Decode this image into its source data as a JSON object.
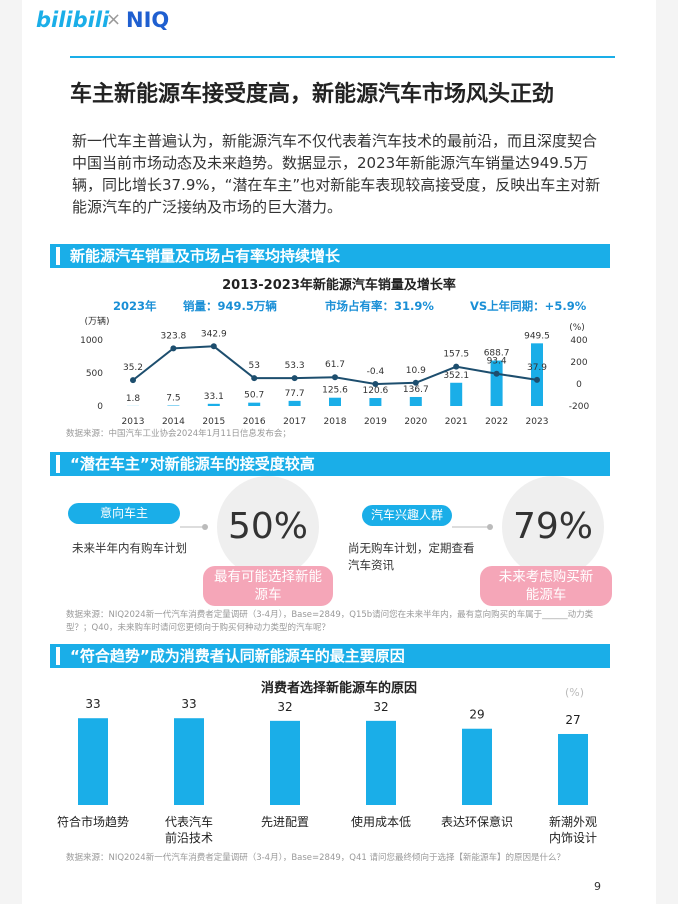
{
  "header": {
    "brand1": "bilibili",
    "sep": "×",
    "brand2": "NIQ"
  },
  "title": "车主新能源车接受度高，新能源汽车市场风头正劲",
  "intro": "新一代车主普遍认为，新能源汽车不仅代表着汽车技术的最前沿，而且深度契合中国当前市场动态及未来趋势。数据显示，2023年新能源汽车销量达949.5万辆，同比增长37.9%，“潜在车主”也对新能车表现较高接受度，反映出车主对新能源汽车的广泛接纳及市场的巨大潜力。",
  "sections": [
    {
      "heading": "新能源汽车销量及市场占有率均持续增长",
      "chart": {
        "type": "bar-line",
        "title": "2013-2023年新能源汽车销量及增长率",
        "highlights": [
          "2023年",
          "销量：949.5万辆",
          "市场占有率：31.9%",
          "VS上年同期：+5.9%"
        ],
        "y_label": "(万辆)",
        "y2_label": "(%)",
        "categories": [
          "2013",
          "2014",
          "2015",
          "2016",
          "2017",
          "2018",
          "2019",
          "2020",
          "2021",
          "2022",
          "2023"
        ],
        "series": [
          {
            "type": "bar",
            "color": "#1aaee8",
            "values": [
              1.8,
              7.5,
              33.1,
              50.7,
              77.7,
              125.6,
              120.6,
              136.7,
              352.1,
              688.7,
              949.5
            ]
          },
          {
            "type": "line",
            "color": "#1d4e6e",
            "axis": "y2",
            "values": [
              35.2,
              323.8,
              342.9,
              53,
              53.3,
              61.7,
              -0.4,
              10.9,
              157.5,
              93.4,
              37.9
            ]
          }
        ],
        "ylim": [
          0,
          1000
        ],
        "yticks": [
          0,
          500,
          1000
        ],
        "y2lim": [
          -200,
          400
        ],
        "y2ticks": [
          -200,
          0,
          200,
          400
        ]
      },
      "source": "数据来源：中国汽车工业协会2024年1月11日信息发布会；"
    },
    {
      "heading": "“潜在车主”对新能源车的接受度较高",
      "cards": [
        {
          "label": "意向车主",
          "desc": "未来半年内有购车计划",
          "value": "50%",
          "tag": "最有可能选择新能源车"
        },
        {
          "label": "汽车兴趣人群",
          "desc": "尚无购车计划，定期查看汽车资讯",
          "value": "79%",
          "tag": "未来考虑购买新能源车"
        }
      ],
      "source": "数据来源：NIQ2024新一代汽车消费者定量调研（3-4月），Base=2849，Q15b请问您在未来半年内，最有意向购买的车属于______动力类型？；Q40，未来购车时请问您更倾向于购买何种动力类型的汽车呢？"
    },
    {
      "heading": "“符合趋势”成为消费者认同新能源车的最主要原因",
      "chart": {
        "type": "bar",
        "title": "消费者选择新能源车的原因",
        "unit": "(%)",
        "categories": [
          "符合市场趋势",
          "代表汽车\n前沿技术",
          "先进配置",
          "使用成本低",
          "表达环保意识",
          "新潮外观\n内饰设计"
        ],
        "values": [
          33,
          33,
          32,
          32,
          29,
          27
        ],
        "color": "#1aaee8"
      },
      "source": "数据来源：NIQ2024新一代汽车消费者定量调研（3-4月），Base=2849，Q41 请问您最终倾向于选择【新能源车】的原因是什么？"
    }
  ],
  "page_number": "9"
}
